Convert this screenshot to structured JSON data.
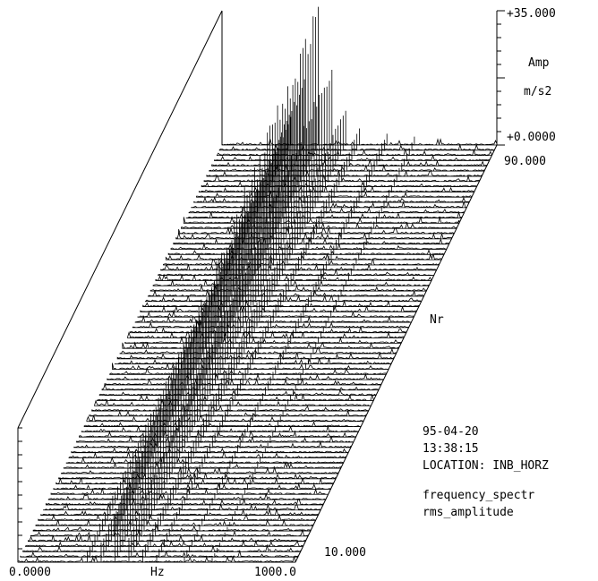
{
  "chart_data": {
    "type": "line",
    "subtype": "waterfall-3d",
    "x_axis": {
      "label": "Hz",
      "min": 0.0,
      "max": 1000.0,
      "min_label": "0.0000",
      "max_label": "1000.0"
    },
    "y_axis": {
      "label": "Nr",
      "min": 10.0,
      "max": 90.0,
      "min_label": "10.000",
      "max_label": "90.000"
    },
    "z_axis": {
      "label": "Amp",
      "unit": "m/s2",
      "min": 0.0,
      "max": 35.0,
      "min_label": "+0.0000",
      "max_label": "+35.000"
    },
    "trace_count": 81,
    "peaks": [
      {
        "hz": 350,
        "amp_start": 12,
        "amp_end": 33
      },
      {
        "hz": 400,
        "amp_start": 7,
        "amp_end": 20
      },
      {
        "hz": 300,
        "amp_start": 5,
        "amp_end": 16
      },
      {
        "hz": 450,
        "amp_start": 3,
        "amp_end": 9
      },
      {
        "hz": 250,
        "amp_start": 3,
        "amp_end": 7
      },
      {
        "hz": 500,
        "amp_start": 2,
        "amp_end": 4
      },
      {
        "hz": 600,
        "amp_start": 1.5,
        "amp_end": 3
      },
      {
        "hz": 700,
        "amp_start": 1,
        "amp_end": 2
      }
    ],
    "grid": false,
    "legend": "none"
  },
  "info": {
    "date": "95-04-20",
    "time": "13:38:15",
    "location": "LOCATION:  INB_HORZ",
    "measure_type": "frequency_spectr",
    "measure_unit": "rms_amplitude"
  }
}
